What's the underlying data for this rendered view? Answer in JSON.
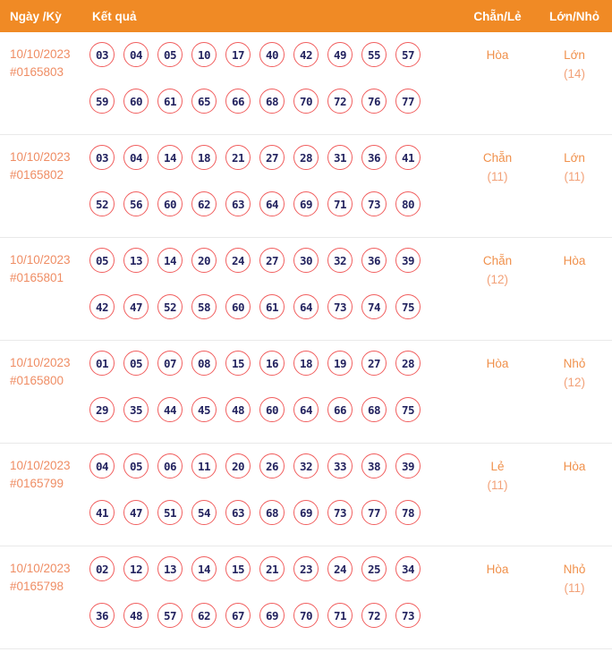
{
  "header": {
    "columns": [
      "Ngày /Kỳ",
      "Kết quả",
      "Chẵn/Lẻ",
      "Lớn/Nhỏ"
    ]
  },
  "colors": {
    "header_bg": "#F08A25",
    "header_text": "#FFFFFF",
    "date_text": "#EF8D64",
    "status_text": "#F0914C",
    "status_count": "#F2A178",
    "ball_border": "#F15F5F",
    "number_text": "#23235F",
    "row_divider": "#E9E9E9"
  },
  "rows": [
    {
      "date": "10/10/2023",
      "draw_id": "#0165803",
      "numbers_line1": [
        "03",
        "04",
        "05",
        "10",
        "17",
        "40",
        "42",
        "49",
        "55",
        "57"
      ],
      "numbers_line2": [
        "59",
        "60",
        "61",
        "65",
        "66",
        "68",
        "70",
        "72",
        "76",
        "77"
      ],
      "chan_le": {
        "label": "Hòa",
        "count": ""
      },
      "lon_nho": {
        "label": "Lớn",
        "count": "(14)"
      }
    },
    {
      "date": "10/10/2023",
      "draw_id": "#0165802",
      "numbers_line1": [
        "03",
        "04",
        "14",
        "18",
        "21",
        "27",
        "28",
        "31",
        "36",
        "41"
      ],
      "numbers_line2": [
        "52",
        "56",
        "60",
        "62",
        "63",
        "64",
        "69",
        "71",
        "73",
        "80"
      ],
      "chan_le": {
        "label": "Chẵn",
        "count": "(11)"
      },
      "lon_nho": {
        "label": "Lớn",
        "count": "(11)"
      }
    },
    {
      "date": "10/10/2023",
      "draw_id": "#0165801",
      "numbers_line1": [
        "05",
        "13",
        "14",
        "20",
        "24",
        "27",
        "30",
        "32",
        "36",
        "39"
      ],
      "numbers_line2": [
        "42",
        "47",
        "52",
        "58",
        "60",
        "61",
        "64",
        "73",
        "74",
        "75"
      ],
      "chan_le": {
        "label": "Chẵn",
        "count": "(12)"
      },
      "lon_nho": {
        "label": "Hòa",
        "count": ""
      }
    },
    {
      "date": "10/10/2023",
      "draw_id": "#0165800",
      "numbers_line1": [
        "01",
        "05",
        "07",
        "08",
        "15",
        "16",
        "18",
        "19",
        "27",
        "28"
      ],
      "numbers_line2": [
        "29",
        "35",
        "44",
        "45",
        "48",
        "60",
        "64",
        "66",
        "68",
        "75"
      ],
      "chan_le": {
        "label": "Hòa",
        "count": ""
      },
      "lon_nho": {
        "label": "Nhỏ",
        "count": "(12)"
      }
    },
    {
      "date": "10/10/2023",
      "draw_id": "#0165799",
      "numbers_line1": [
        "04",
        "05",
        "06",
        "11",
        "20",
        "26",
        "32",
        "33",
        "38",
        "39"
      ],
      "numbers_line2": [
        "41",
        "47",
        "51",
        "54",
        "63",
        "68",
        "69",
        "73",
        "77",
        "78"
      ],
      "chan_le": {
        "label": "Lẻ",
        "count": "(11)"
      },
      "lon_nho": {
        "label": "Hòa",
        "count": ""
      }
    },
    {
      "date": "10/10/2023",
      "draw_id": "#0165798",
      "numbers_line1": [
        "02",
        "12",
        "13",
        "14",
        "15",
        "21",
        "23",
        "24",
        "25",
        "34"
      ],
      "numbers_line2": [
        "36",
        "48",
        "57",
        "62",
        "67",
        "69",
        "70",
        "71",
        "72",
        "73"
      ],
      "chan_le": {
        "label": "Hòa",
        "count": ""
      },
      "lon_nho": {
        "label": "Nhỏ",
        "count": "(11)"
      }
    }
  ]
}
